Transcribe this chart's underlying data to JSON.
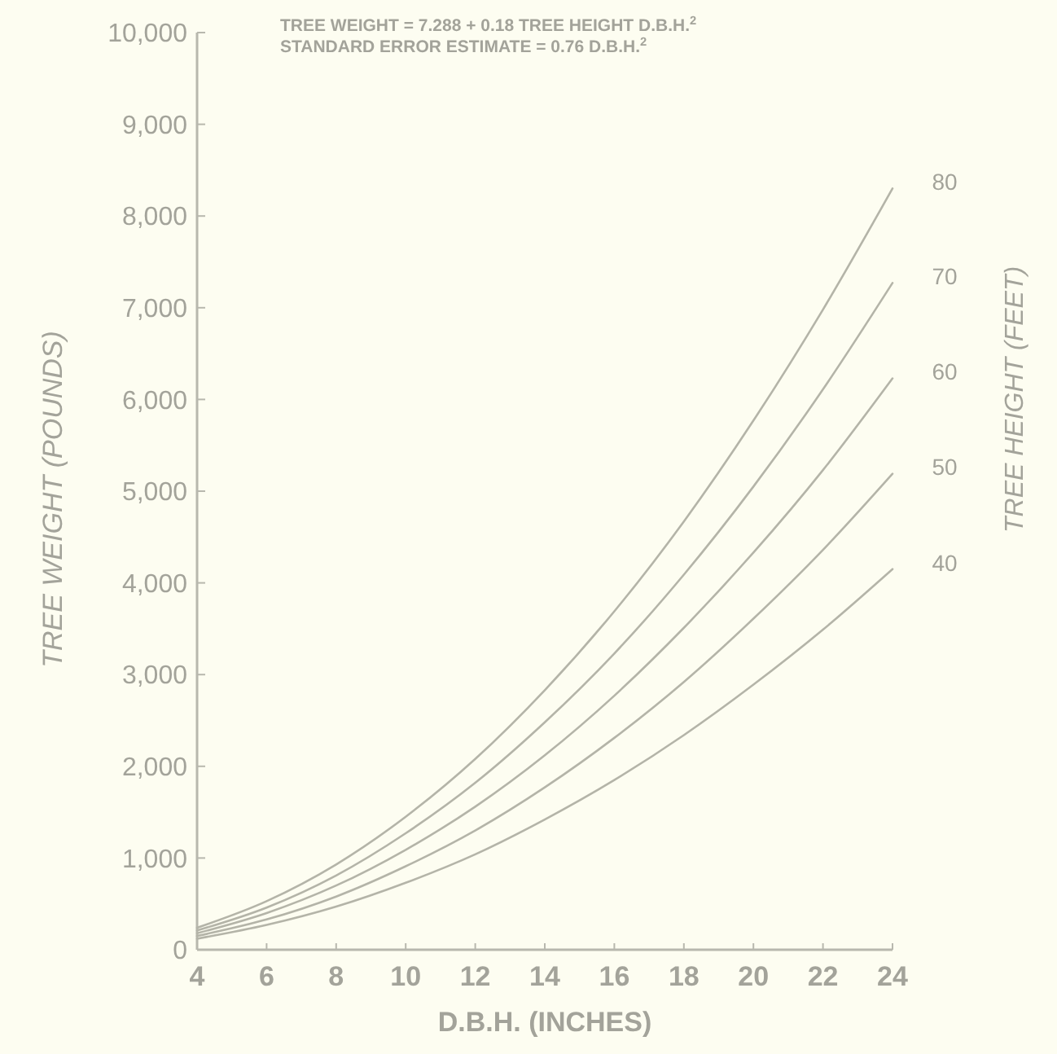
{
  "chart_data": {
    "type": "line",
    "title": "TREE WEIGHT = 7.288 + 0.18 TREE HEIGHT D.B.H.$^{2}$",
    "subtitle": "STANDARD ERROR ESTIMATE = 0.76 D.B.H.$^{2}$",
    "xlabel": "D.B.H. (INCHES)",
    "ylabel": "TREE WEIGHT (POUNDS)",
    "legend_title": "TREE HEIGHT (FEET)",
    "legend": "right",
    "marker": "none",
    "line_style": "solid",
    "grid": false,
    "x": [
      4,
      6,
      8,
      10,
      12,
      14,
      16,
      18,
      20,
      22,
      24
    ],
    "xlim": [
      4,
      24
    ],
    "xticks": [
      4,
      6,
      8,
      10,
      12,
      14,
      16,
      18,
      20,
      22,
      24
    ],
    "ylim": [
      0,
      10000
    ],
    "yticks": [
      {
        "value": 0,
        "label": "0"
      },
      {
        "value": 1000,
        "label": "1,000"
      },
      {
        "value": 2000,
        "label": "2,000"
      },
      {
        "value": 3000,
        "label": "3,000"
      },
      {
        "value": 4000,
        "label": "4,000"
      },
      {
        "value": 5000,
        "label": "5,000"
      },
      {
        "value": 6000,
        "label": "6,000"
      },
      {
        "value": 7000,
        "label": "7,000"
      },
      {
        "value": 8000,
        "label": "8,000"
      },
      {
        "value": 9000,
        "label": "9,000"
      },
      {
        "value": 10000,
        "label": "10,000"
      }
    ],
    "series": [
      {
        "name": "80",
        "color": "#b4b4a8",
        "values": [
          240,
          530,
          930,
          1450,
          2080,
          2830,
          3690,
          4670,
          5770,
          6980,
          8300
        ]
      },
      {
        "name": "70",
        "color": "#b4b4a8",
        "values": [
          210,
          460,
          810,
          1270,
          1820,
          2480,
          3230,
          4090,
          5050,
          6110,
          7270
        ]
      },
      {
        "name": "60",
        "color": "#b4b4a8",
        "values": [
          180,
          400,
          700,
          1090,
          1560,
          2120,
          2770,
          3510,
          4330,
          5230,
          6230
        ]
      },
      {
        "name": "50",
        "color": "#b4b4a8",
        "values": [
          150,
          330,
          580,
          910,
          1300,
          1770,
          2310,
          2920,
          3610,
          4360,
          5190
        ]
      },
      {
        "name": "40",
        "color": "#b4b4a8",
        "values": [
          120,
          270,
          470,
          730,
          1040,
          1420,
          1850,
          2340,
          2890,
          3490,
          4150
        ]
      }
    ]
  }
}
